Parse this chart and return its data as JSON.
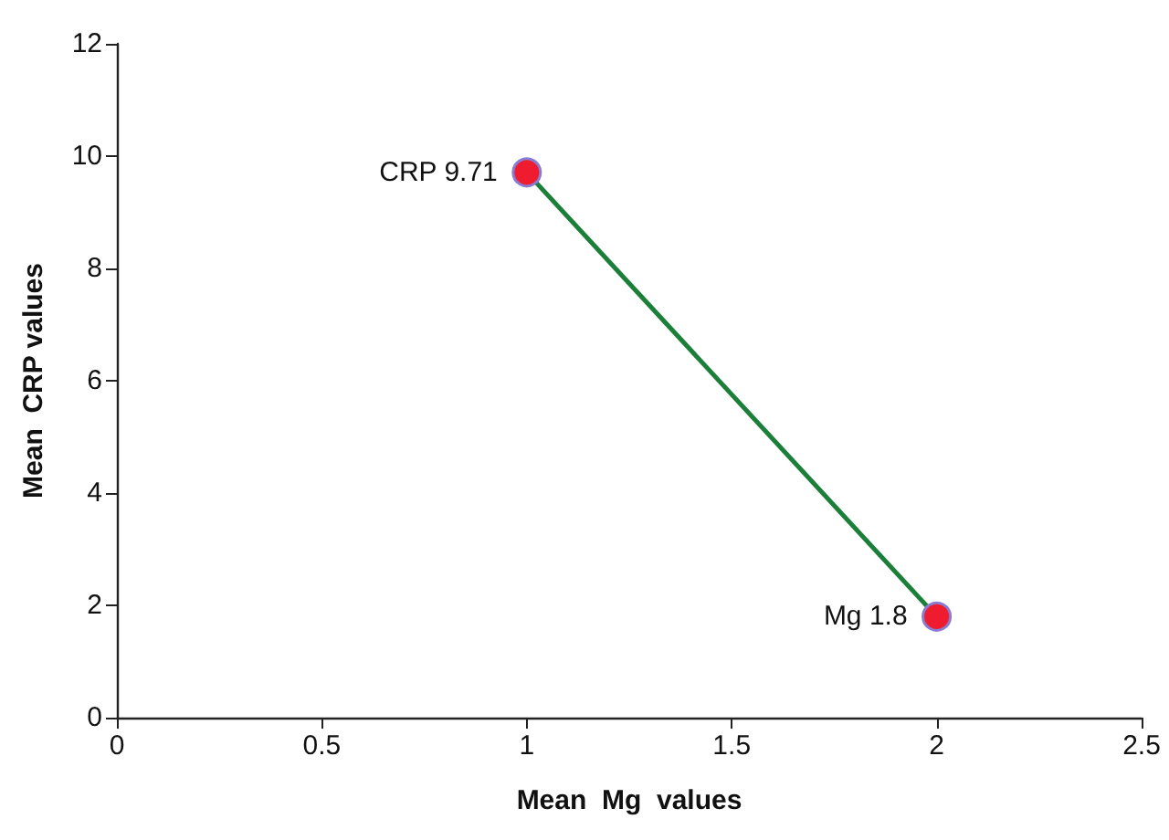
{
  "chart_data": {
    "type": "line",
    "xlabel": "Mean  Mg  values",
    "ylabel": "Mean  CRP values",
    "x": [
      1,
      2
    ],
    "series": [
      {
        "color": "#1b7f3a",
        "values": [
          9.71,
          1.8
        ],
        "marker": "none"
      },
      {
        "type": "scatter",
        "color": "#ee1c2e",
        "values": [
          9.71,
          1.8
        ],
        "marker": "circle"
      }
    ],
    "annotations": [
      {
        "text": "CRP 9.71",
        "x": 1,
        "y": 9.71
      },
      {
        "text": "Mg 1.8",
        "x": 2,
        "y": 1.8
      }
    ],
    "xlim": [
      0,
      2.5
    ],
    "xticks": [
      0,
      0.5,
      1,
      1.5,
      2,
      2.5
    ],
    "ylim": [
      0,
      12
    ],
    "yticks": [
      0,
      2,
      4,
      6,
      8,
      10,
      12
    ],
    "grid": false
  }
}
